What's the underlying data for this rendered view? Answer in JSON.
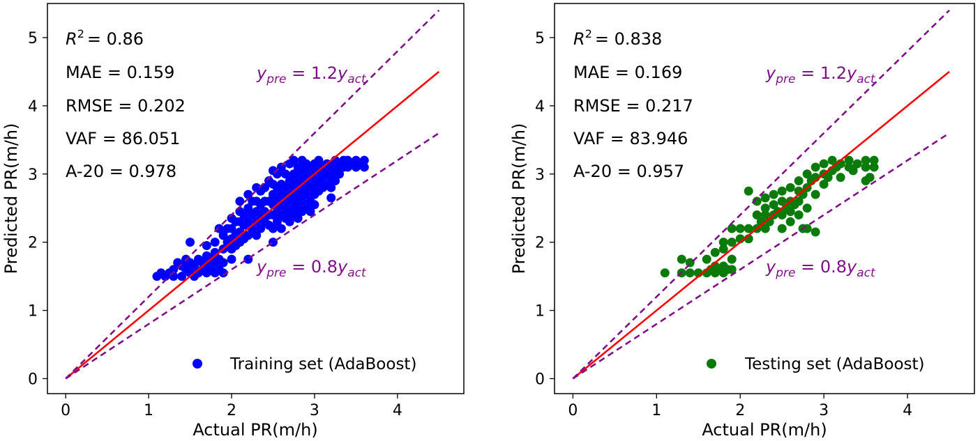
{
  "chart_data": [
    {
      "type": "scatter",
      "panel": "left",
      "xlabel": "Actual PR(m/h)",
      "ylabel": "Predicted PR(m/h)",
      "xlim": [
        -0.22,
        4.8
      ],
      "ylim": [
        -0.22,
        5.5
      ],
      "xticks": [
        "0",
        "1",
        "2",
        "3",
        "4"
      ],
      "yticks": [
        "0",
        "1",
        "2",
        "3",
        "4",
        "5"
      ],
      "marker_color": "#0000ff",
      "legend": {
        "label": "Training set (AdaBoost)",
        "loc": "lower right"
      },
      "stats": {
        "r2_symbol": "R",
        "r2_exp": "2",
        "r2_value": "= 0.86",
        "mae": "MAE = 0.159",
        "rmse": "RMSE = 0.202",
        "vaf": "VAF = 86.051",
        "a20": "A-20 = 0.978"
      },
      "lines": [
        {
          "name": "y = x fit",
          "color": "#ff0000",
          "x": [
            0,
            4.5
          ],
          "y": [
            0,
            4.5
          ]
        },
        {
          "name": "upper bound",
          "color": "#7f0f87",
          "x": [
            0,
            4.5
          ],
          "y": [
            0,
            5.4
          ]
        },
        {
          "name": "lower bound",
          "color": "#7f0f87",
          "x": [
            0,
            4.5
          ],
          "y": [
            0,
            3.6
          ]
        }
      ],
      "annotations": {
        "upper": {
          "y": "y",
          "pre": "pre",
          "mid": " = 1.2",
          "y2": "y",
          "act": "act"
        },
        "lower": {
          "y": "y",
          "pre": "pre",
          "mid": " = 0.8",
          "y2": "y",
          "act": "act"
        }
      },
      "points": [
        [
          1.1,
          1.5
        ],
        [
          1.15,
          1.55
        ],
        [
          1.2,
          1.5
        ],
        [
          1.25,
          1.55
        ],
        [
          1.3,
          1.5
        ],
        [
          1.3,
          1.6
        ],
        [
          1.35,
          1.7
        ],
        [
          1.4,
          1.5
        ],
        [
          1.4,
          1.65
        ],
        [
          1.45,
          1.6
        ],
        [
          1.45,
          1.75
        ],
        [
          1.5,
          1.55
        ],
        [
          1.5,
          1.7
        ],
        [
          1.5,
          2.0
        ],
        [
          1.55,
          1.5
        ],
        [
          1.55,
          1.65
        ],
        [
          1.6,
          1.55
        ],
        [
          1.6,
          1.75
        ],
        [
          1.65,
          1.6
        ],
        [
          1.65,
          1.7
        ],
        [
          1.7,
          1.55
        ],
        [
          1.7,
          1.65
        ],
        [
          1.7,
          1.8
        ],
        [
          1.7,
          1.95
        ],
        [
          1.75,
          1.6
        ],
        [
          1.75,
          1.75
        ],
        [
          1.8,
          1.55
        ],
        [
          1.8,
          1.7
        ],
        [
          1.8,
          1.85
        ],
        [
          1.8,
          2.0
        ],
        [
          1.85,
          1.6
        ],
        [
          1.85,
          1.75
        ],
        [
          1.85,
          2.2
        ],
        [
          1.9,
          1.55
        ],
        [
          1.9,
          1.7
        ],
        [
          1.9,
          1.9
        ],
        [
          1.9,
          2.1
        ],
        [
          1.95,
          2.0
        ],
        [
          1.95,
          2.2
        ],
        [
          2.0,
          1.75
        ],
        [
          2.0,
          1.9
        ],
        [
          2.0,
          2.05
        ],
        [
          2.0,
          2.2
        ],
        [
          2.0,
          2.35
        ],
        [
          2.05,
          1.95
        ],
        [
          2.05,
          2.1
        ],
        [
          2.05,
          2.3
        ],
        [
          2.1,
          2.0
        ],
        [
          2.1,
          2.15
        ],
        [
          2.1,
          2.3
        ],
        [
          2.1,
          2.45
        ],
        [
          2.1,
          2.6
        ],
        [
          2.15,
          2.05
        ],
        [
          2.15,
          2.25
        ],
        [
          2.15,
          2.4
        ],
        [
          2.2,
          1.75
        ],
        [
          2.2,
          2.1
        ],
        [
          2.2,
          2.3
        ],
        [
          2.2,
          2.5
        ],
        [
          2.2,
          2.7
        ],
        [
          2.25,
          2.2
        ],
        [
          2.25,
          2.4
        ],
        [
          2.25,
          2.6
        ],
        [
          2.3,
          2.1
        ],
        [
          2.3,
          2.3
        ],
        [
          2.3,
          2.45
        ],
        [
          2.3,
          2.6
        ],
        [
          2.3,
          2.8
        ],
        [
          2.35,
          2.2
        ],
        [
          2.35,
          2.4
        ],
        [
          2.35,
          2.55
        ],
        [
          2.35,
          2.75
        ],
        [
          2.4,
          2.3
        ],
        [
          2.4,
          2.45
        ],
        [
          2.4,
          2.6
        ],
        [
          2.4,
          2.8
        ],
        [
          2.45,
          2.25
        ],
        [
          2.45,
          2.4
        ],
        [
          2.45,
          2.6
        ],
        [
          2.45,
          2.9
        ],
        [
          2.5,
          2.0
        ],
        [
          2.5,
          2.2
        ],
        [
          2.5,
          2.4
        ],
        [
          2.5,
          2.55
        ],
        [
          2.5,
          2.7
        ],
        [
          2.5,
          2.85
        ],
        [
          2.5,
          3.05
        ],
        [
          2.55,
          2.3
        ],
        [
          2.55,
          2.5
        ],
        [
          2.55,
          2.65
        ],
        [
          2.55,
          2.8
        ],
        [
          2.55,
          3.0
        ],
        [
          2.6,
          2.2
        ],
        [
          2.6,
          2.4
        ],
        [
          2.6,
          2.55
        ],
        [
          2.6,
          2.7
        ],
        [
          2.6,
          2.85
        ],
        [
          2.6,
          3.1
        ],
        [
          2.65,
          2.35
        ],
        [
          2.65,
          2.5
        ],
        [
          2.65,
          2.65
        ],
        [
          2.65,
          2.8
        ],
        [
          2.65,
          3.0
        ],
        [
          2.7,
          2.3
        ],
        [
          2.7,
          2.45
        ],
        [
          2.7,
          2.6
        ],
        [
          2.7,
          2.75
        ],
        [
          2.7,
          2.9
        ],
        [
          2.7,
          3.15
        ],
        [
          2.75,
          2.4
        ],
        [
          2.75,
          2.55
        ],
        [
          2.75,
          2.7
        ],
        [
          2.75,
          2.85
        ],
        [
          2.75,
          3.0
        ],
        [
          2.75,
          3.2
        ],
        [
          2.8,
          2.35
        ],
        [
          2.8,
          2.5
        ],
        [
          2.8,
          2.65
        ],
        [
          2.8,
          2.8
        ],
        [
          2.8,
          2.95
        ],
        [
          2.8,
          3.1
        ],
        [
          2.85,
          2.45
        ],
        [
          2.85,
          2.6
        ],
        [
          2.85,
          2.75
        ],
        [
          2.85,
          2.9
        ],
        [
          2.85,
          3.05
        ],
        [
          2.85,
          3.2
        ],
        [
          2.9,
          2.5
        ],
        [
          2.9,
          2.7
        ],
        [
          2.9,
          2.85
        ],
        [
          2.9,
          3.0
        ],
        [
          2.9,
          3.15
        ],
        [
          2.95,
          2.45
        ],
        [
          2.95,
          2.6
        ],
        [
          2.95,
          2.8
        ],
        [
          2.95,
          2.95
        ],
        [
          2.95,
          3.1
        ],
        [
          3.0,
          2.55
        ],
        [
          3.0,
          2.7
        ],
        [
          3.0,
          2.85
        ],
        [
          3.0,
          3.0
        ],
        [
          3.0,
          3.15
        ],
        [
          3.05,
          2.75
        ],
        [
          3.05,
          2.9
        ],
        [
          3.05,
          3.05
        ],
        [
          3.05,
          3.2
        ],
        [
          3.1,
          2.8
        ],
        [
          3.1,
          2.95
        ],
        [
          3.1,
          3.1
        ],
        [
          3.15,
          2.85
        ],
        [
          3.15,
          3.0
        ],
        [
          3.15,
          3.15
        ],
        [
          3.2,
          2.65
        ],
        [
          3.2,
          2.8
        ],
        [
          3.2,
          2.95
        ],
        [
          3.2,
          3.1
        ],
        [
          3.25,
          2.9
        ],
        [
          3.25,
          3.05
        ],
        [
          3.25,
          3.2
        ],
        [
          3.3,
          3.0
        ],
        [
          3.3,
          3.15
        ],
        [
          3.35,
          3.1
        ],
        [
          3.35,
          3.2
        ],
        [
          3.4,
          3.1
        ],
        [
          3.4,
          3.2
        ],
        [
          3.45,
          3.15
        ],
        [
          3.5,
          3.1
        ],
        [
          3.5,
          3.2
        ],
        [
          3.55,
          3.15
        ],
        [
          3.6,
          3.1
        ],
        [
          3.6,
          3.2
        ]
      ]
    },
    {
      "type": "scatter",
      "panel": "right",
      "xlabel": "Actual PR(m/h)",
      "ylabel": "Predicted PR(m/h)",
      "xlim": [
        -0.22,
        4.8
      ],
      "ylim": [
        -0.22,
        5.5
      ],
      "xticks": [
        "0",
        "1",
        "2",
        "3",
        "4"
      ],
      "yticks": [
        "0",
        "1",
        "2",
        "3",
        "4",
        "5"
      ],
      "marker_color": "#0a7a0a",
      "legend": {
        "label": "Testing set (AdaBoost)",
        "loc": "lower right"
      },
      "stats": {
        "r2_symbol": "R",
        "r2_exp": "2",
        "r2_value": "= 0.838",
        "mae": "MAE = 0.169",
        "rmse": "RMSE = 0.217",
        "vaf": "VAF = 83.946",
        "a20": "A-20 = 0.957"
      },
      "lines": [
        {
          "name": "y = x fit",
          "color": "#ff0000",
          "x": [
            0,
            4.5
          ],
          "y": [
            0,
            4.5
          ]
        },
        {
          "name": "upper bound",
          "color": "#7f0f87",
          "x": [
            0,
            4.5
          ],
          "y": [
            0,
            5.4
          ]
        },
        {
          "name": "lower bound",
          "color": "#7f0f87",
          "x": [
            0,
            4.5
          ],
          "y": [
            0,
            3.6
          ]
        }
      ],
      "annotations": {
        "upper": {
          "y": "y",
          "pre": "pre",
          "mid": " = 1.2",
          "y2": "y",
          "act": "act"
        },
        "lower": {
          "y": "y",
          "pre": "pre",
          "mid": " = 0.8",
          "y2": "y",
          "act": "act"
        }
      },
      "points": [
        [
          1.1,
          1.55
        ],
        [
          1.3,
          1.55
        ],
        [
          1.3,
          1.75
        ],
        [
          1.4,
          1.55
        ],
        [
          1.4,
          1.7
        ],
        [
          1.5,
          1.55
        ],
        [
          1.6,
          1.55
        ],
        [
          1.6,
          1.75
        ],
        [
          1.65,
          1.6
        ],
        [
          1.7,
          1.55
        ],
        [
          1.7,
          1.65
        ],
        [
          1.7,
          1.85
        ],
        [
          1.75,
          1.6
        ],
        [
          1.8,
          1.55
        ],
        [
          1.8,
          1.65
        ],
        [
          1.8,
          1.9
        ],
        [
          1.8,
          2.0
        ],
        [
          1.85,
          1.6
        ],
        [
          1.9,
          1.6
        ],
        [
          1.9,
          1.75
        ],
        [
          1.9,
          2.0
        ],
        [
          1.9,
          2.2
        ],
        [
          2.0,
          2.05
        ],
        [
          2.0,
          2.2
        ],
        [
          2.1,
          2.05
        ],
        [
          2.1,
          2.2
        ],
        [
          2.1,
          2.75
        ],
        [
          2.2,
          2.2
        ],
        [
          2.2,
          2.4
        ],
        [
          2.2,
          2.6
        ],
        [
          2.25,
          2.3
        ],
        [
          2.3,
          2.2
        ],
        [
          2.3,
          2.4
        ],
        [
          2.3,
          2.5
        ],
        [
          2.3,
          2.65
        ],
        [
          2.35,
          2.3
        ],
        [
          2.4,
          2.4
        ],
        [
          2.4,
          2.55
        ],
        [
          2.4,
          2.7
        ],
        [
          2.45,
          2.45
        ],
        [
          2.5,
          2.2
        ],
        [
          2.5,
          2.4
        ],
        [
          2.5,
          2.6
        ],
        [
          2.5,
          2.75
        ],
        [
          2.55,
          2.5
        ],
        [
          2.6,
          2.3
        ],
        [
          2.6,
          2.45
        ],
        [
          2.6,
          2.6
        ],
        [
          2.6,
          2.8
        ],
        [
          2.65,
          2.55
        ],
        [
          2.7,
          2.4
        ],
        [
          2.7,
          2.6
        ],
        [
          2.7,
          2.75
        ],
        [
          2.7,
          2.9
        ],
        [
          2.75,
          2.2
        ],
        [
          2.75,
          2.7
        ],
        [
          2.8,
          2.2
        ],
        [
          2.8,
          2.5
        ],
        [
          2.8,
          2.8
        ],
        [
          2.8,
          3.0
        ],
        [
          2.85,
          2.9
        ],
        [
          2.9,
          2.15
        ],
        [
          2.9,
          2.7
        ],
        [
          2.9,
          2.95
        ],
        [
          2.9,
          3.1
        ],
        [
          3.0,
          2.85
        ],
        [
          3.0,
          3.0
        ],
        [
          3.0,
          3.15
        ],
        [
          3.05,
          2.95
        ],
        [
          3.1,
          3.05
        ],
        [
          3.1,
          3.2
        ],
        [
          3.15,
          3.1
        ],
        [
          3.2,
          2.95
        ],
        [
          3.2,
          3.15
        ],
        [
          3.3,
          3.1
        ],
        [
          3.3,
          3.2
        ],
        [
          3.35,
          3.05
        ],
        [
          3.4,
          3.15
        ],
        [
          3.5,
          2.9
        ],
        [
          3.5,
          3.1
        ],
        [
          3.5,
          3.2
        ],
        [
          3.55,
          2.95
        ],
        [
          3.6,
          3.1
        ],
        [
          3.6,
          3.2
        ]
      ]
    }
  ]
}
